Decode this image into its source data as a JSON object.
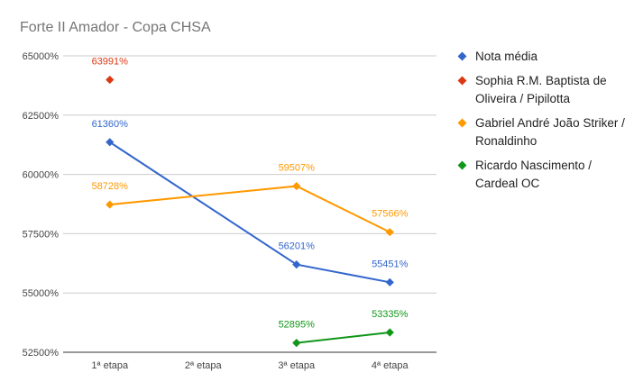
{
  "chart_data": {
    "type": "line",
    "title": "Forte II Amador - Copa CHSA",
    "categories": [
      "1ª etapa",
      "2ª etapa",
      "3ª etapa",
      "4ª etapa"
    ],
    "y_ticks": [
      52500,
      55000,
      57500,
      60000,
      62500,
      65000
    ],
    "y_tick_labels": [
      "52500%",
      "55000%",
      "57500%",
      "60000%",
      "62500%",
      "65000%"
    ],
    "ylim": [
      52500,
      65000
    ],
    "xlabel": "",
    "ylabel": "",
    "grid": true,
    "legend_position": "right",
    "series": [
      {
        "name": "Nota média",
        "color": "#3366cc",
        "values": [
          61360,
          null,
          56201,
          55451
        ],
        "labels": [
          "61360%",
          null,
          "56201%",
          "55451%"
        ]
      },
      {
        "name": "Sophia R.M. Baptista de Oliveira / Pipilotta",
        "color": "#dc3912",
        "values": [
          63991,
          null,
          null,
          null
        ],
        "labels": [
          "63991%",
          null,
          null,
          null
        ]
      },
      {
        "name": "Gabriel André João Striker / Ronaldinho",
        "color": "#ff9900",
        "values": [
          58728,
          null,
          59507,
          57566
        ],
        "labels": [
          "58728%",
          null,
          "59507%",
          "57566%"
        ]
      },
      {
        "name": "Ricardo Nascimento / Cardeal OC",
        "color": "#109618",
        "values": [
          null,
          null,
          52895,
          53335
        ],
        "labels": [
          null,
          null,
          "52895%",
          "53335%"
        ]
      }
    ]
  }
}
